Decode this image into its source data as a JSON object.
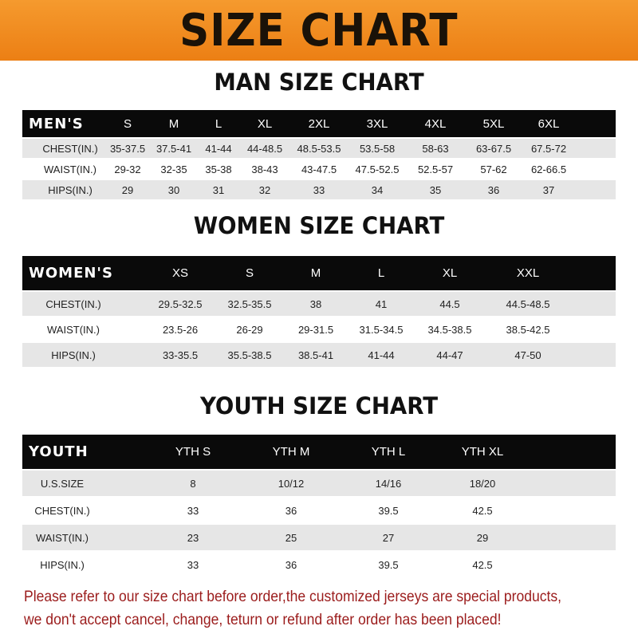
{
  "banner": {
    "title": "SIZE CHART",
    "color": "#ec7f14"
  },
  "men": {
    "title": "MAN SIZE CHART",
    "header": [
      "MEN'S",
      "S",
      "M",
      "L",
      "XL",
      "2XL",
      "3XL",
      "4XL",
      "5XL",
      "6XL"
    ],
    "rows": [
      [
        "CHEST(IN.)",
        "35-37.5",
        "37.5-41",
        "41-44",
        "44-48.5",
        "48.5-53.5",
        "53.5-58",
        "58-63",
        "63-67.5",
        "67.5-72"
      ],
      [
        "WAIST(IN.)",
        "29-32",
        "32-35",
        "35-38",
        "38-43",
        "43-47.5",
        "47.5-52.5",
        "52.5-57",
        "57-62",
        "62-66.5"
      ],
      [
        "HIPS(IN.)",
        "29",
        "30",
        "31",
        "32",
        "33",
        "34",
        "35",
        "36",
        "37"
      ]
    ]
  },
  "women": {
    "title": "WOMEN SIZE CHART",
    "header": [
      "WOMEN'S",
      "XS",
      "S",
      "M",
      "L",
      "XL",
      "XXL"
    ],
    "rows": [
      [
        "CHEST(IN.)",
        "29.5-32.5",
        "32.5-35.5",
        "38",
        "41",
        "44.5",
        "44.5-48.5"
      ],
      [
        "WAIST(IN.)",
        "23.5-26",
        "26-29",
        "29-31.5",
        "31.5-34.5",
        "34.5-38.5",
        "38.5-42.5"
      ],
      [
        "HIPS(IN.)",
        "33-35.5",
        "35.5-38.5",
        "38.5-41",
        "41-44",
        "44-47",
        "47-50"
      ]
    ]
  },
  "youth": {
    "title": "YOUTH SIZE CHART",
    "header": [
      "YOUTH",
      "YTH S",
      "YTH M",
      "YTH L",
      "YTH XL"
    ],
    "rows": [
      [
        "U.S.SIZE",
        "8",
        "10/12",
        "14/16",
        "18/20"
      ],
      [
        "CHEST(IN.)",
        "33",
        "36",
        "39.5",
        "42.5"
      ],
      [
        "WAIST(IN.)",
        "23",
        "25",
        "27",
        "29"
      ],
      [
        "HIPS(IN.)",
        "33",
        "36",
        "39.5",
        "42.5"
      ]
    ]
  },
  "note": "Please refer to our size chart before order,the customized jerseys are special products, we don't accept cancel, change, teturn or refund after order has been placed!",
  "colors": {
    "header_row": "#0a0a0a",
    "stripe": "#e6e6e6",
    "note": "#9b1c1c"
  }
}
